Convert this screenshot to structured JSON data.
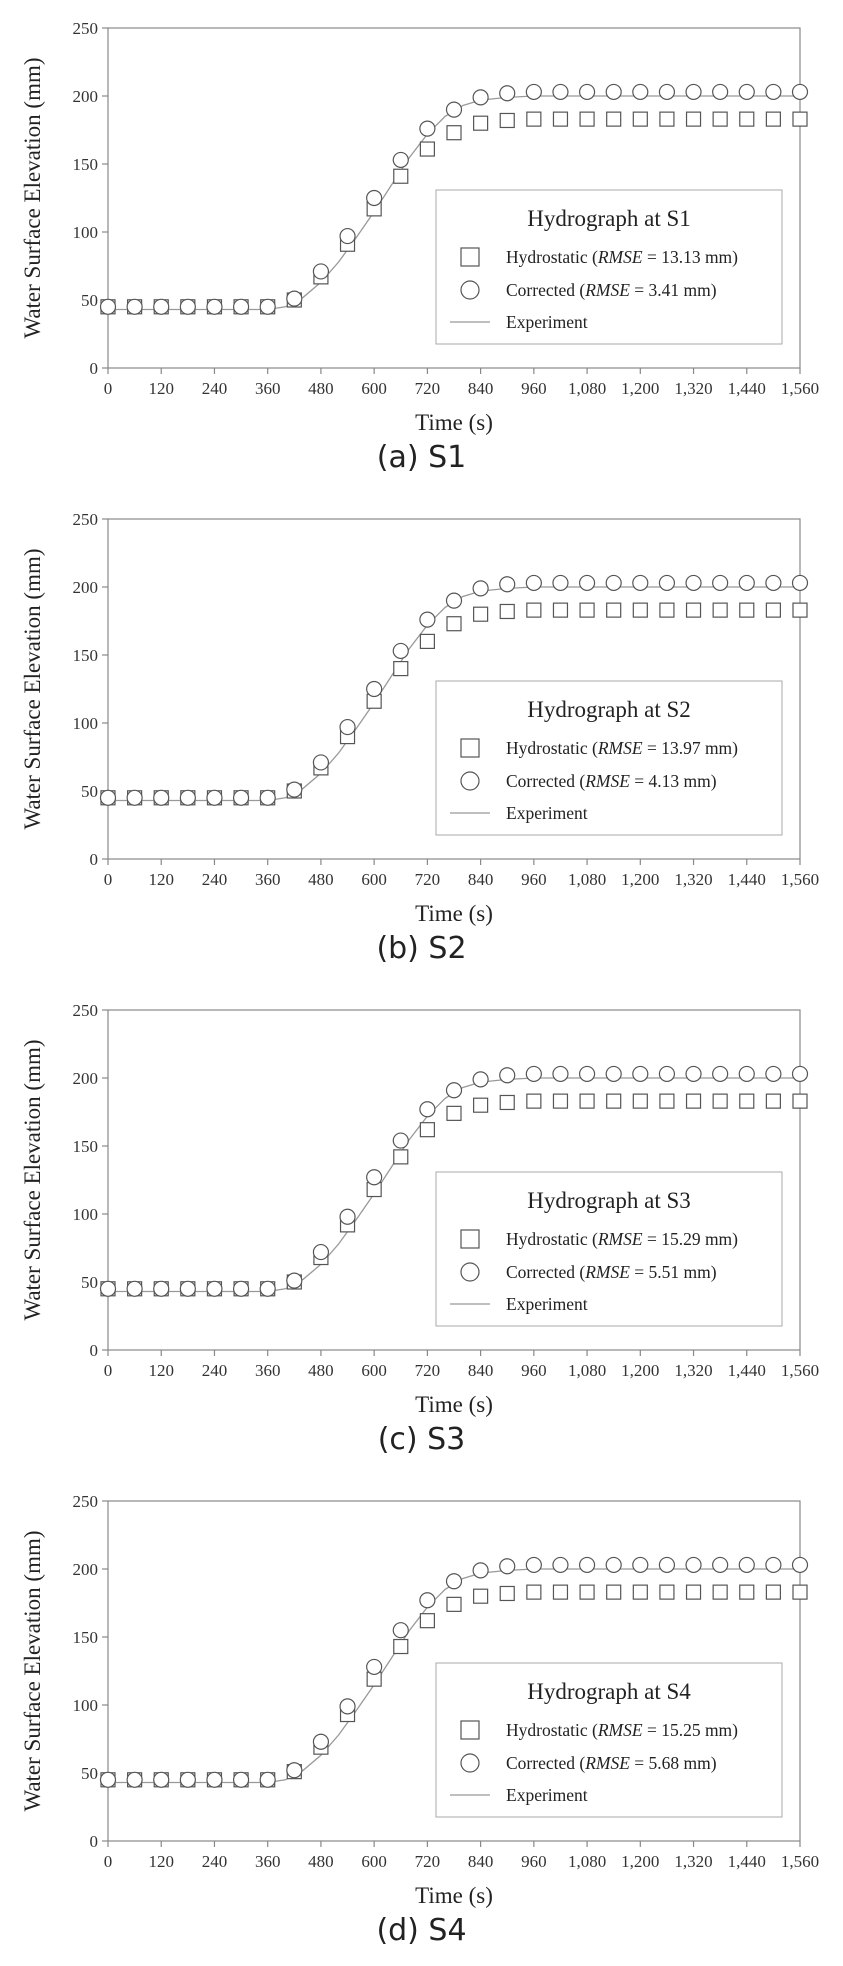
{
  "chart_data": [
    {
      "type": "line",
      "panel_label": "(a) S1",
      "title": "Hydrograph at S1",
      "xlabel": "Time (s)",
      "ylabel": "Water Surface Elevation (mm)",
      "xlim": [
        0,
        1560
      ],
      "ylim": [
        0,
        250
      ],
      "xticks": [
        0,
        120,
        240,
        360,
        480,
        600,
        720,
        840,
        960,
        1080,
        1200,
        1320,
        1440,
        1560
      ],
      "xtick_labels": [
        "0",
        "120",
        "240",
        "360",
        "480",
        "600",
        "720",
        "840",
        "960",
        "1,080",
        "1,200",
        "1,320",
        "1,440",
        "1,560"
      ],
      "yticks": [
        0,
        50,
        100,
        150,
        200,
        250
      ],
      "legend_position": "center-right",
      "grid": false,
      "marker_x": [
        0,
        60,
        120,
        180,
        240,
        300,
        360,
        420,
        480,
        540,
        600,
        660,
        720,
        780,
        840,
        900,
        960,
        1020,
        1080,
        1140,
        1200,
        1260,
        1320,
        1380,
        1440,
        1500,
        1560
      ],
      "series": [
        {
          "name": "Hydrostatic",
          "marker": "square",
          "rmse_label": "RMSE",
          "rmse_value": "= 13.13 mm",
          "values": [
            45,
            45,
            45,
            45,
            45,
            45,
            45,
            50,
            67,
            91,
            117,
            141,
            161,
            173,
            180,
            182,
            183,
            183,
            183,
            183,
            183,
            183,
            183,
            183,
            183,
            183,
            183
          ]
        },
        {
          "name": "Corrected",
          "marker": "circle",
          "rmse_label": "RMSE",
          "rmse_value": "=   3.41 mm",
          "values": [
            45,
            45,
            45,
            45,
            45,
            45,
            45,
            51,
            71,
            97,
            125,
            153,
            176,
            190,
            199,
            202,
            203,
            203,
            203,
            203,
            203,
            203,
            203,
            203,
            203,
            203,
            203
          ]
        },
        {
          "name": "Experiment",
          "marker": "line",
          "x": [
            0,
            360,
            400,
            440,
            480,
            520,
            560,
            600,
            640,
            680,
            720,
            760,
            800,
            840,
            900,
            960,
            1080,
            1560
          ],
          "values": [
            43,
            43,
            45,
            52,
            63,
            78,
            96,
            115,
            135,
            155,
            172,
            185,
            193,
            197,
            199,
            200,
            200,
            200
          ]
        }
      ]
    },
    {
      "type": "line",
      "panel_label": "(b) S2",
      "title": "Hydrograph at S2",
      "xlabel": "Time (s)",
      "ylabel": "Water Surface Elevation (mm)",
      "xlim": [
        0,
        1560
      ],
      "ylim": [
        0,
        250
      ],
      "xticks": [
        0,
        120,
        240,
        360,
        480,
        600,
        720,
        840,
        960,
        1080,
        1200,
        1320,
        1440,
        1560
      ],
      "xtick_labels": [
        "0",
        "120",
        "240",
        "360",
        "480",
        "600",
        "720",
        "840",
        "960",
        "1,080",
        "1,200",
        "1,320",
        "1,440",
        "1,560"
      ],
      "yticks": [
        0,
        50,
        100,
        150,
        200,
        250
      ],
      "legend_position": "center-right",
      "grid": false,
      "marker_x": [
        0,
        60,
        120,
        180,
        240,
        300,
        360,
        420,
        480,
        540,
        600,
        660,
        720,
        780,
        840,
        900,
        960,
        1020,
        1080,
        1140,
        1200,
        1260,
        1320,
        1380,
        1440,
        1500,
        1560
      ],
      "series": [
        {
          "name": "Hydrostatic",
          "marker": "square",
          "rmse_label": "RMSE",
          "rmse_value": "= 13.97 mm",
          "values": [
            45,
            45,
            45,
            45,
            45,
            45,
            45,
            50,
            67,
            90,
            116,
            140,
            160,
            173,
            180,
            182,
            183,
            183,
            183,
            183,
            183,
            183,
            183,
            183,
            183,
            183,
            183
          ]
        },
        {
          "name": "Corrected",
          "marker": "circle",
          "rmse_label": "RMSE",
          "rmse_value": "=   4.13 mm",
          "values": [
            45,
            45,
            45,
            45,
            45,
            45,
            45,
            51,
            71,
            97,
            125,
            153,
            176,
            190,
            199,
            202,
            203,
            203,
            203,
            203,
            203,
            203,
            203,
            203,
            203,
            203,
            203
          ]
        },
        {
          "name": "Experiment",
          "marker": "line",
          "x": [
            0,
            360,
            400,
            440,
            480,
            520,
            560,
            600,
            640,
            680,
            720,
            760,
            800,
            840,
            900,
            960,
            1080,
            1560
          ],
          "values": [
            43,
            43,
            45,
            52,
            63,
            78,
            96,
            115,
            135,
            155,
            172,
            185,
            193,
            197,
            199,
            200,
            200,
            200
          ]
        }
      ]
    },
    {
      "type": "line",
      "panel_label": "(c) S3",
      "title": "Hydrograph at S3",
      "xlabel": "Time (s)",
      "ylabel": "Water Surface Elevation (mm)",
      "xlim": [
        0,
        1560
      ],
      "ylim": [
        0,
        250
      ],
      "xticks": [
        0,
        120,
        240,
        360,
        480,
        600,
        720,
        840,
        960,
        1080,
        1200,
        1320,
        1440,
        1560
      ],
      "xtick_labels": [
        "0",
        "120",
        "240",
        "360",
        "480",
        "600",
        "720",
        "840",
        "960",
        "1,080",
        "1,200",
        "1,320",
        "1,440",
        "1,560"
      ],
      "yticks": [
        0,
        50,
        100,
        150,
        200,
        250
      ],
      "legend_position": "center-right",
      "grid": false,
      "marker_x": [
        0,
        60,
        120,
        180,
        240,
        300,
        360,
        420,
        480,
        540,
        600,
        660,
        720,
        780,
        840,
        900,
        960,
        1020,
        1080,
        1140,
        1200,
        1260,
        1320,
        1380,
        1440,
        1500,
        1560
      ],
      "series": [
        {
          "name": "Hydrostatic",
          "marker": "square",
          "rmse_label": "RMSE",
          "rmse_value": "= 15.29 mm",
          "values": [
            45,
            45,
            45,
            45,
            45,
            45,
            45,
            50,
            68,
            92,
            118,
            142,
            162,
            174,
            180,
            182,
            183,
            183,
            183,
            183,
            183,
            183,
            183,
            183,
            183,
            183,
            183
          ]
        },
        {
          "name": "Corrected",
          "marker": "circle",
          "rmse_label": "RMSE",
          "rmse_value": "=   5.51 mm",
          "values": [
            45,
            45,
            45,
            45,
            45,
            45,
            45,
            51,
            72,
            98,
            127,
            154,
            177,
            191,
            199,
            202,
            203,
            203,
            203,
            203,
            203,
            203,
            203,
            203,
            203,
            203,
            203
          ]
        },
        {
          "name": "Experiment",
          "marker": "line",
          "x": [
            0,
            360,
            400,
            440,
            480,
            520,
            560,
            600,
            640,
            680,
            720,
            760,
            800,
            840,
            900,
            960,
            1080,
            1560
          ],
          "values": [
            43,
            43,
            45,
            52,
            63,
            78,
            96,
            115,
            135,
            155,
            172,
            185,
            193,
            197,
            199,
            200,
            200,
            200
          ]
        }
      ]
    },
    {
      "type": "line",
      "panel_label": "(d) S4",
      "title": "Hydrograph at S4",
      "xlabel": "Time (s)",
      "ylabel": "Water Surface Elevation (mm)",
      "xlim": [
        0,
        1560
      ],
      "ylim": [
        0,
        250
      ],
      "xticks": [
        0,
        120,
        240,
        360,
        480,
        600,
        720,
        840,
        960,
        1080,
        1200,
        1320,
        1440,
        1560
      ],
      "xtick_labels": [
        "0",
        "120",
        "240",
        "360",
        "480",
        "600",
        "720",
        "840",
        "960",
        "1,080",
        "1,200",
        "1,320",
        "1,440",
        "1,560"
      ],
      "yticks": [
        0,
        50,
        100,
        150,
        200,
        250
      ],
      "legend_position": "center-right",
      "grid": false,
      "marker_x": [
        0,
        60,
        120,
        180,
        240,
        300,
        360,
        420,
        480,
        540,
        600,
        660,
        720,
        780,
        840,
        900,
        960,
        1020,
        1080,
        1140,
        1200,
        1260,
        1320,
        1380,
        1440,
        1500,
        1560
      ],
      "series": [
        {
          "name": "Hydrostatic",
          "marker": "square",
          "rmse_label": "RMSE",
          "rmse_value": "= 15.25 mm",
          "values": [
            45,
            45,
            45,
            45,
            45,
            45,
            45,
            51,
            69,
            93,
            119,
            143,
            162,
            174,
            180,
            182,
            183,
            183,
            183,
            183,
            183,
            183,
            183,
            183,
            183,
            183,
            183
          ]
        },
        {
          "name": "Corrected",
          "marker": "circle",
          "rmse_label": "RMSE",
          "rmse_value": "=   5.68 mm",
          "values": [
            45,
            45,
            45,
            45,
            45,
            45,
            45,
            52,
            73,
            99,
            128,
            155,
            177,
            191,
            199,
            202,
            203,
            203,
            203,
            203,
            203,
            203,
            203,
            203,
            203,
            203,
            203
          ]
        },
        {
          "name": "Experiment",
          "marker": "line",
          "x": [
            0,
            360,
            400,
            440,
            480,
            520,
            560,
            600,
            640,
            680,
            720,
            760,
            800,
            840,
            900,
            960,
            1080,
            1560
          ],
          "values": [
            43,
            43,
            45,
            52,
            63,
            78,
            96,
            115,
            135,
            155,
            172,
            185,
            193,
            197,
            199,
            200,
            200,
            200
          ]
        }
      ]
    }
  ],
  "colors": {
    "markers": "#555555",
    "experiment_line": "#999999",
    "axis": "#888888",
    "legend_border": "#aaaaaa"
  }
}
